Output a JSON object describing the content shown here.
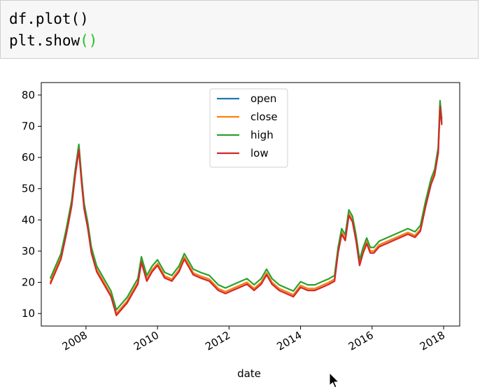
{
  "code_cell": {
    "line1": "df.plot()",
    "line2_prefix": "plt.show",
    "line2_parens": "()"
  },
  "chart_data": {
    "type": "line",
    "xlabel": "date",
    "xlim": [
      2006.75,
      2018.45
    ],
    "ylim": [
      6,
      84
    ],
    "x_ticks": [
      2008,
      2010,
      2012,
      2014,
      2016,
      2018
    ],
    "x_tick_labels": [
      "2008",
      "2010",
      "2012",
      "2014",
      "2016",
      "2018"
    ],
    "y_ticks": [
      10,
      20,
      30,
      40,
      50,
      60,
      70,
      80
    ],
    "y_tick_labels": [
      "10",
      "20",
      "30",
      "40",
      "50",
      "60",
      "70",
      "80"
    ],
    "legend_position": "top-center",
    "series": [
      {
        "name": "open",
        "color": "#1f77b4",
        "offset": 0
      },
      {
        "name": "close",
        "color": "#ff7f0e",
        "offset": 0
      },
      {
        "name": "high",
        "color": "#2ca02c",
        "offset": 1.2
      },
      {
        "name": "low",
        "color": "#d62728",
        "offset": -0.6
      }
    ],
    "x": [
      2007.0,
      2007.15,
      2007.3,
      2007.45,
      2007.6,
      2007.7,
      2007.8,
      2007.88,
      2007.95,
      2008.05,
      2008.15,
      2008.3,
      2008.5,
      2008.7,
      2008.85,
      2009.0,
      2009.15,
      2009.3,
      2009.45,
      2009.55,
      2009.7,
      2009.85,
      2010.0,
      2010.2,
      2010.4,
      2010.6,
      2010.75,
      2010.85,
      2011.0,
      2011.2,
      2011.45,
      2011.7,
      2011.9,
      2012.1,
      2012.3,
      2012.5,
      2012.7,
      2012.9,
      2013.05,
      2013.2,
      2013.4,
      2013.6,
      2013.8,
      2014.0,
      2014.2,
      2014.4,
      2014.6,
      2014.8,
      2014.95,
      2015.05,
      2015.15,
      2015.25,
      2015.35,
      2015.45,
      2015.55,
      2015.65,
      2015.75,
      2015.85,
      2015.95,
      2016.05,
      2016.2,
      2016.4,
      2016.6,
      2016.8,
      2017.0,
      2017.2,
      2017.35,
      2017.5,
      2017.65,
      2017.75,
      2017.85,
      2017.9,
      2017.95
    ],
    "values": [
      20,
      24,
      28,
      36,
      45,
      55,
      63,
      52,
      44,
      38,
      30,
      24,
      20,
      16,
      10,
      12,
      14,
      17,
      20,
      27,
      21,
      24,
      26,
      22,
      21,
      24,
      28,
      26,
      23,
      22,
      21,
      18,
      17,
      18,
      19,
      20,
      18,
      20,
      23,
      20,
      18,
      17,
      16,
      19,
      18,
      18,
      19,
      20,
      21,
      30,
      36,
      34,
      42,
      40,
      34,
      26,
      30,
      33,
      30,
      30,
      32,
      33,
      34,
      35,
      36,
      35,
      37,
      45,
      52,
      55,
      62,
      77,
      71
    ]
  }
}
